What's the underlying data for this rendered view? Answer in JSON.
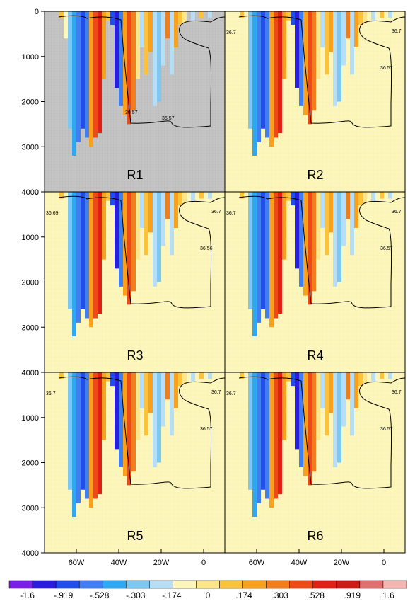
{
  "chart_data": [
    {
      "type": "heatmap",
      "panel_label": "R1",
      "contour_labels": [
        "36.57",
        "36.57"
      ]
    },
    {
      "type": "heatmap",
      "panel_label": "R2",
      "contour_labels": [
        "36.7",
        "36.7",
        "36.57"
      ]
    },
    {
      "type": "heatmap",
      "panel_label": "R3",
      "contour_labels": [
        "36.69",
        "36.7",
        "36.56"
      ]
    },
    {
      "type": "heatmap",
      "panel_label": "R4",
      "contour_labels": [
        "36.7",
        "36.7",
        "36.57"
      ]
    },
    {
      "type": "heatmap",
      "panel_label": "R5",
      "contour_labels": [
        "36.7",
        "36.7",
        "36.57"
      ]
    },
    {
      "type": "heatmap",
      "panel_label": "R6",
      "contour_labels": [
        "36.7",
        "36.7",
        "36.57"
      ]
    }
  ],
  "axes": {
    "y_ticks": [
      "0",
      "1000",
      "2000",
      "3000",
      "4000"
    ],
    "y_range": [
      0,
      4000
    ],
    "y_inverted": true,
    "x_ticks": [
      "60W",
      "40W",
      "20W",
      "0"
    ],
    "x_range_lon": [
      -75,
      10
    ]
  },
  "colorbar": {
    "labels": [
      "-1.6",
      "-.919",
      "-.528",
      "-.303",
      "-.174",
      "0",
      ".174",
      ".303",
      ".528",
      ".919",
      "1.6"
    ],
    "colors": [
      "#7a1fe6",
      "#2a1de0",
      "#1f4fe8",
      "#3f7ff2",
      "#2ea8f0",
      "#7cc8f2",
      "#b8def5",
      "#fdf6bc",
      "#fde58a",
      "#fcc23c",
      "#f7a11e",
      "#f27d1d",
      "#ec4a17",
      "#e01f15",
      "#cc1a14",
      "#e07070",
      "#f5b5b0"
    ]
  },
  "style": {
    "land_color": "#c8c8c8",
    "background_field_color": "#fdf6bc"
  }
}
